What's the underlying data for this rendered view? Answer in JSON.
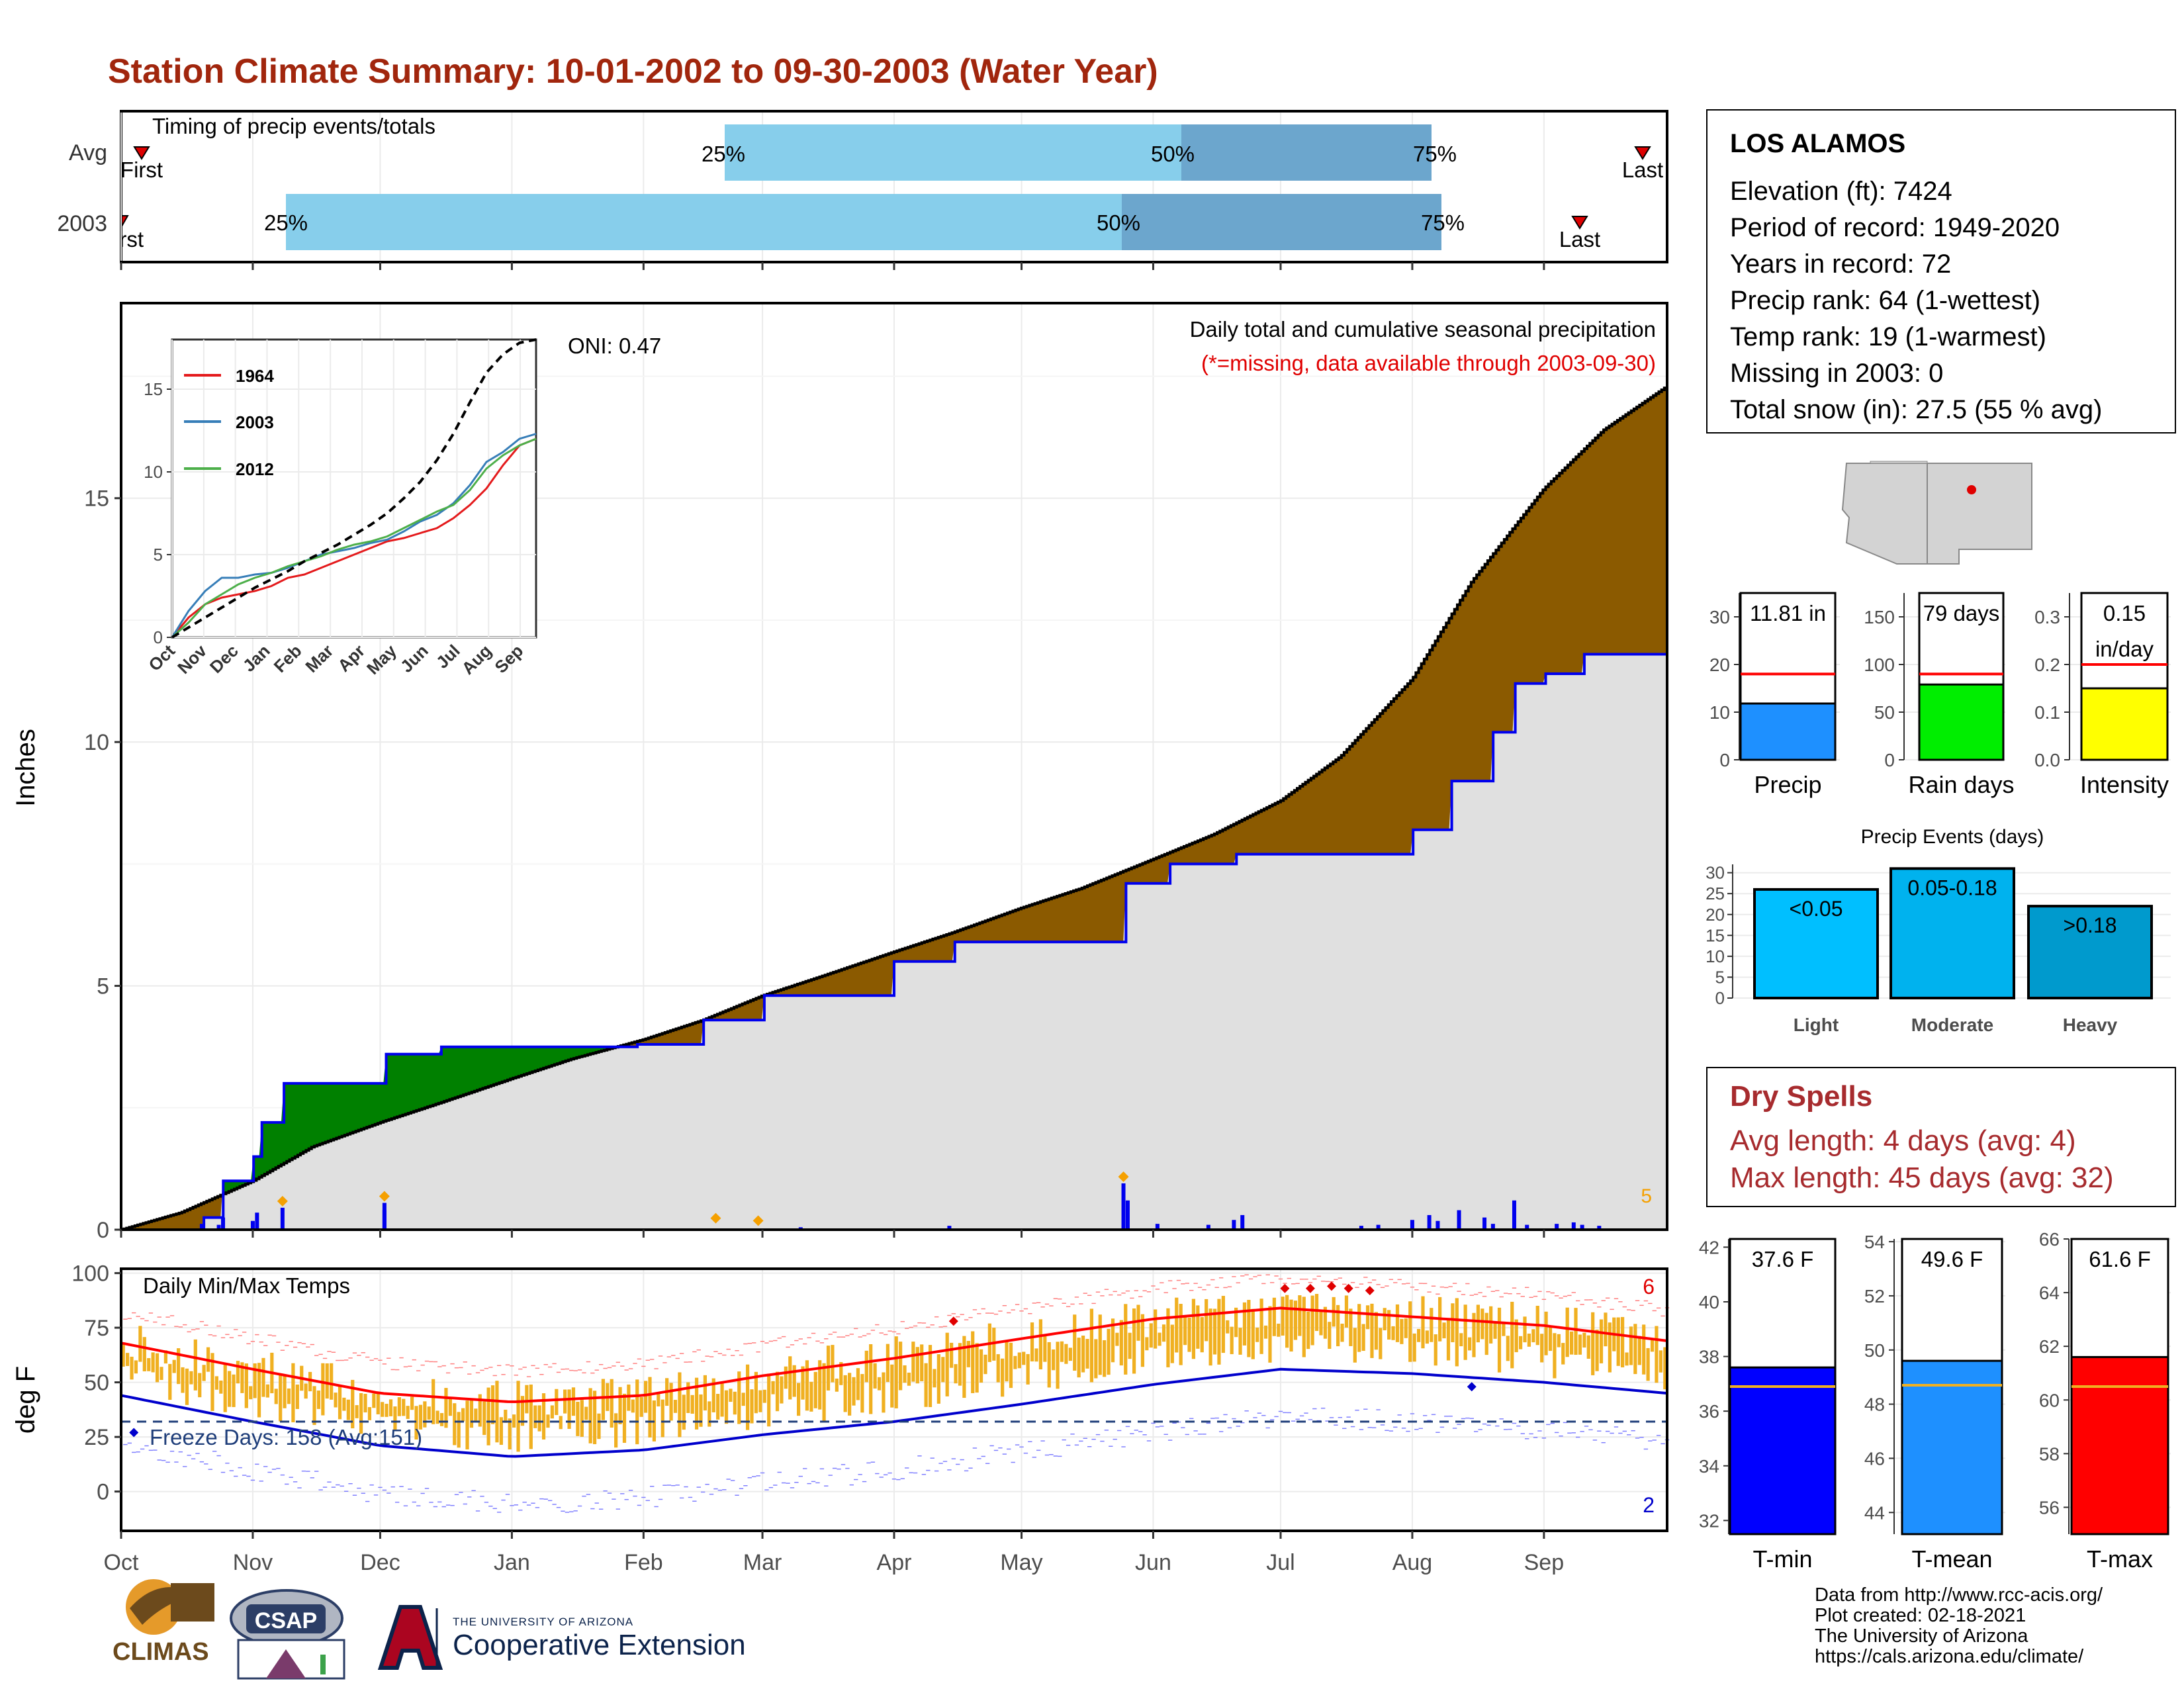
{
  "title": "Station Climate Summary: 10-01-2002 to 09-30-2003 (Water Year)",
  "colors": {
    "title": "#a1260d",
    "light_blue": "#87ceeb",
    "mid_blue": "#6ca6cd",
    "brown": "#8b5a00",
    "green": "#008000",
    "grey_fill": "#e0e0e0",
    "precip_bar": "#1e90ff",
    "raindays_bar": "#00ee00",
    "intensity_bar": "#ffff00",
    "tmin_bar": "#0000ff",
    "tmean_bar": "#1e90ff",
    "tmax_bar": "#ff0000",
    "temp_range": "#f0b021",
    "dry_spell": "#a72b2e"
  },
  "timing_panel": {
    "label": "Timing of precip events/totals",
    "rows": [
      "Avg",
      "2003"
    ],
    "avg": {
      "first": "First",
      "q25": "25%",
      "q50": "50%",
      "q75": "75%",
      "last": "Last"
    },
    "y2003": {
      "first": "First",
      "q25": "25%",
      "q50": "50%",
      "q75": "75%",
      "last": "Last"
    }
  },
  "precip_panel": {
    "title": "Daily total and cumulative seasonal precipitation",
    "subtitle": "(*=missing, data available through 2003-09-30)",
    "oni": "ONI: 0.47",
    "ylabel": "Inches",
    "corner_count": "5"
  },
  "inset": {
    "legend": [
      "1964",
      "2003",
      "2012"
    ],
    "months": [
      "Oct",
      "Nov",
      "Dec",
      "Jan",
      "Feb",
      "Mar",
      "Apr",
      "May",
      "Jun",
      "Jul",
      "Aug",
      "Sep"
    ]
  },
  "temp_panel": {
    "title": "Daily Min/Max Temps",
    "freeze": "Freeze Days: 158 (Avg:151)",
    "ylabel": "deg F",
    "count_high": "6",
    "count_low": "2"
  },
  "months": [
    "Oct",
    "Nov",
    "Dec",
    "Jan",
    "Feb",
    "Mar",
    "Apr",
    "May",
    "Jun",
    "Jul",
    "Aug",
    "Sep"
  ],
  "station": {
    "name": "LOS ALAMOS",
    "lines": [
      "Elevation (ft): 7424",
      "Period of record: 1949-2020",
      "Years in record: 72",
      "Precip rank: 64 (1-wettest)",
      "Temp rank: 19 (1-warmest)",
      "Missing in 2003: 0",
      "Total snow (in): 27.5 (55 % avg)"
    ]
  },
  "summary_bars": {
    "precip": {
      "label": "Precip",
      "value_label": "11.81 in"
    },
    "rain_days": {
      "label": "Rain days",
      "value_label": "79 days"
    },
    "intensity": {
      "label": "Intensity",
      "value_label_1": "0.15",
      "value_label_2": "in/day"
    }
  },
  "precip_events": {
    "title": "Precip Events (days)",
    "bars": [
      {
        "category": "Light",
        "bar_label": "<0.05"
      },
      {
        "category": "Moderate",
        "bar_label": "0.05-0.18"
      },
      {
        "category": "Heavy",
        "bar_label": ">0.18"
      }
    ]
  },
  "dry_spells": {
    "title": "Dry Spells",
    "avg_length": "Avg length: 4 days (avg: 4)",
    "max_length": "Max length: 45 days (avg: 32)"
  },
  "temp_bars": {
    "tmin": {
      "label": "T-min",
      "value_label": "37.6 F"
    },
    "tmean": {
      "label": "T-mean",
      "value_label": "49.6 F"
    },
    "tmax": {
      "label": "T-max",
      "value_label": "61.6 F"
    }
  },
  "credits": [
    "Data from http://www.rcc-acis.org/",
    "Plot created: 02-18-2021",
    "The University of Arizona",
    "https://cals.arizona.edu/climate/"
  ],
  "logos": {
    "climas": "CLIMAS",
    "csap": "CSAP",
    "ua_small": "THE UNIVERSITY OF ARIZONA",
    "ua_ext": "Cooperative Extension"
  },
  "chart_data": [
    {
      "type": "bar",
      "name": "timing",
      "rows": [
        {
          "row": "Avg",
          "first_date": "2002-10-07",
          "q25_date": "2003-02-21",
          "q50_date": "2003-05-30",
          "q75_date": "2003-07-31",
          "last_date": "2003-09-28"
        },
        {
          "row": "2003",
          "first_date": "2002-10-01",
          "q25_date": "2002-11-09",
          "q50_date": "2003-05-22",
          "q75_date": "2003-08-01",
          "last_date": "2003-09-14"
        }
      ]
    },
    {
      "type": "area",
      "name": "cumulative_precip",
      "ylabel": "Inches",
      "ylim": [
        0,
        19
      ],
      "x_range": [
        "2002-10-01",
        "2003-09-30"
      ],
      "average_cumulative": [
        [
          "2002-10-01",
          0
        ],
        [
          "2002-10-15",
          0.35
        ],
        [
          "2002-11-01",
          1.0
        ],
        [
          "2002-11-15",
          1.7
        ],
        [
          "2002-12-01",
          2.2
        ],
        [
          "2002-12-15",
          2.6
        ],
        [
          "2003-01-01",
          3.1
        ],
        [
          "2003-01-15",
          3.5
        ],
        [
          "2003-02-01",
          3.9
        ],
        [
          "2003-02-15",
          4.3
        ],
        [
          "2003-03-01",
          4.8
        ],
        [
          "2003-03-15",
          5.2
        ],
        [
          "2003-04-01",
          5.7
        ],
        [
          "2003-04-15",
          6.1
        ],
        [
          "2003-05-01",
          6.6
        ],
        [
          "2003-05-15",
          7.0
        ],
        [
          "2003-06-01",
          7.6
        ],
        [
          "2003-06-15",
          8.1
        ],
        [
          "2003-07-01",
          8.8
        ],
        [
          "2003-07-15",
          9.7
        ],
        [
          "2003-08-01",
          11.3
        ],
        [
          "2003-08-15",
          13.3
        ],
        [
          "2003-09-01",
          15.2
        ],
        [
          "2003-09-15",
          16.4
        ],
        [
          "2003-09-30",
          17.3
        ]
      ],
      "observed_cumulative_2003": [
        [
          "2002-10-01",
          0
        ],
        [
          "2002-10-20",
          0.25
        ],
        [
          "2002-10-25",
          1.0
        ],
        [
          "2002-11-01",
          1.5
        ],
        [
          "2002-11-03",
          2.2
        ],
        [
          "2002-11-08",
          3.0
        ],
        [
          "2002-11-30",
          3.0
        ],
        [
          "2002-12-02",
          3.6
        ],
        [
          "2002-12-15",
          3.75
        ],
        [
          "2003-01-30",
          3.8
        ],
        [
          "2003-02-15",
          4.3
        ],
        [
          "2003-03-01",
          4.8
        ],
        [
          "2003-04-01",
          5.5
        ],
        [
          "2003-04-15",
          5.9
        ],
        [
          "2003-05-25",
          5.9
        ],
        [
          "2003-05-25",
          7.1
        ],
        [
          "2003-06-05",
          7.5
        ],
        [
          "2003-06-20",
          7.7
        ],
        [
          "2003-07-20",
          7.7
        ],
        [
          "2003-08-01",
          8.2
        ],
        [
          "2003-08-10",
          9.2
        ],
        [
          "2003-08-20",
          10.2
        ],
        [
          "2003-08-25",
          11.2
        ],
        [
          "2003-09-01",
          11.4
        ],
        [
          "2003-09-10",
          11.8
        ],
        [
          "2003-09-30",
          11.81
        ]
      ],
      "fill_legend": {
        "above_avg": "green",
        "below_avg": "brown"
      }
    },
    {
      "type": "line",
      "name": "inset_cumulative",
      "series_names": [
        "1964",
        "2003",
        "2012"
      ],
      "ylim": [
        0,
        18
      ],
      "yticks": [
        0,
        5,
        10,
        15
      ]
    },
    {
      "type": "line",
      "name": "daily_temps",
      "ylabel": "deg F",
      "ylim": [
        -18,
        102
      ],
      "yticks": [
        0,
        25,
        50,
        75,
        100
      ],
      "freeze_line": 32,
      "avg_max_curve": [
        [
          "2002-10-01",
          68
        ],
        [
          "2002-11-01",
          56
        ],
        [
          "2002-12-01",
          45
        ],
        [
          "2003-01-01",
          41
        ],
        [
          "2003-02-01",
          44
        ],
        [
          "2003-03-01",
          53
        ],
        [
          "2003-04-01",
          61
        ],
        [
          "2003-05-01",
          70
        ],
        [
          "2003-06-01",
          79
        ],
        [
          "2003-07-01",
          84
        ],
        [
          "2003-08-01",
          80
        ],
        [
          "2003-09-01",
          76
        ],
        [
          "2003-09-30",
          69
        ]
      ],
      "avg_min_curve": [
        [
          "2002-10-01",
          44
        ],
        [
          "2002-11-01",
          32
        ],
        [
          "2002-12-01",
          21
        ],
        [
          "2003-01-01",
          16
        ],
        [
          "2003-02-01",
          19
        ],
        [
          "2003-03-01",
          26
        ],
        [
          "2003-04-01",
          32
        ],
        [
          "2003-05-01",
          40
        ],
        [
          "2003-06-01",
          49
        ],
        [
          "2003-07-01",
          56
        ],
        [
          "2003-08-01",
          54
        ],
        [
          "2003-09-01",
          50
        ],
        [
          "2003-09-30",
          45
        ]
      ]
    },
    {
      "type": "bar",
      "name": "precip_total",
      "categories": [
        "Precip"
      ],
      "values": [
        11.81
      ],
      "average": 18,
      "ylim": [
        0,
        35
      ],
      "yticks": [
        0,
        10,
        20,
        30
      ]
    },
    {
      "type": "bar",
      "name": "rain_days",
      "categories": [
        "Rain days"
      ],
      "values": [
        79
      ],
      "average": 90,
      "ylim": [
        0,
        175
      ],
      "yticks": [
        0,
        50,
        100,
        150
      ]
    },
    {
      "type": "bar",
      "name": "intensity",
      "categories": [
        "Intensity"
      ],
      "values": [
        0.15
      ],
      "average": 0.2,
      "ylim": [
        0,
        0.35
      ],
      "yticks": [
        0.0,
        0.1,
        0.2,
        0.3
      ]
    },
    {
      "type": "bar",
      "name": "precip_events",
      "title": "Precip Events (days)",
      "categories": [
        "Light",
        "Moderate",
        "Heavy"
      ],
      "values": [
        26,
        31,
        22
      ],
      "ylim": [
        0,
        32
      ],
      "yticks": [
        0,
        5,
        10,
        15,
        20,
        25,
        30
      ]
    },
    {
      "type": "bar",
      "name": "tmin",
      "categories": [
        "T-min"
      ],
      "values": [
        37.6
      ],
      "average": 36.9,
      "ylim": [
        31.5,
        42.3
      ],
      "yticks": [
        32,
        34,
        36,
        38,
        40,
        42
      ]
    },
    {
      "type": "bar",
      "name": "tmean",
      "categories": [
        "T-mean"
      ],
      "values": [
        49.6
      ],
      "average": 48.7,
      "ylim": [
        43.2,
        54.1
      ],
      "yticks": [
        44,
        46,
        48,
        50,
        52,
        54
      ]
    },
    {
      "type": "bar",
      "name": "tmax",
      "categories": [
        "T-max"
      ],
      "values": [
        61.6
      ],
      "average": 60.5,
      "ylim": [
        55.0,
        66.0
      ],
      "yticks": [
        56,
        58,
        60,
        62,
        64,
        66
      ]
    }
  ]
}
